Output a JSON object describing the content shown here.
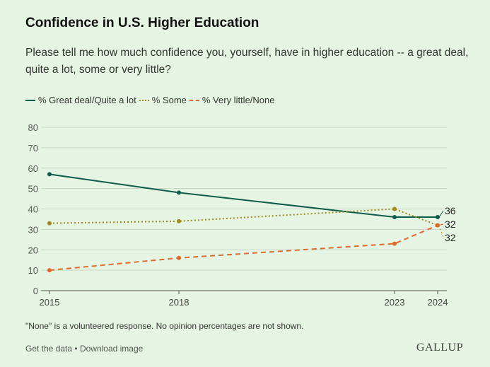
{
  "title": "Confidence in U.S. Higher Education",
  "subtitle": "Please tell me how much confidence you, yourself, have in higher education -- a great deal, quite a lot, some or very little?",
  "footnote": "\"None\" is a volunteered response. No opinion percentages are not shown.",
  "links": {
    "get_data": "Get the data",
    "separator": "•",
    "download": "Download image"
  },
  "brand": "GALLUP",
  "colors": {
    "background": "#e6f4e3",
    "great": "#0d5c4c",
    "some": "#a08a1e",
    "little": "#e06a2c",
    "grid": "#c9d6c6"
  },
  "chart_data": {
    "type": "line",
    "x": [
      2015,
      2018,
      2023,
      2024
    ],
    "x_tick_labels": [
      "2015",
      "2018",
      "2023",
      "2024"
    ],
    "ylim": [
      0,
      80
    ],
    "y_ticks": [
      0,
      10,
      20,
      30,
      40,
      50,
      60,
      70,
      80
    ],
    "grid": true,
    "legend_position": "top-left",
    "series": [
      {
        "name": "% Great deal/Quite a lot",
        "key": "great",
        "style": "solid",
        "values": [
          57,
          48,
          36,
          36
        ],
        "end_label": "36"
      },
      {
        "name": "% Some",
        "key": "some",
        "style": "dotted",
        "values": [
          33,
          34,
          40,
          32
        ],
        "end_label": "32"
      },
      {
        "name": "% Very little/None",
        "key": "little",
        "style": "dashed",
        "values": [
          10,
          16,
          23,
          32
        ],
        "end_label": "32"
      }
    ]
  }
}
